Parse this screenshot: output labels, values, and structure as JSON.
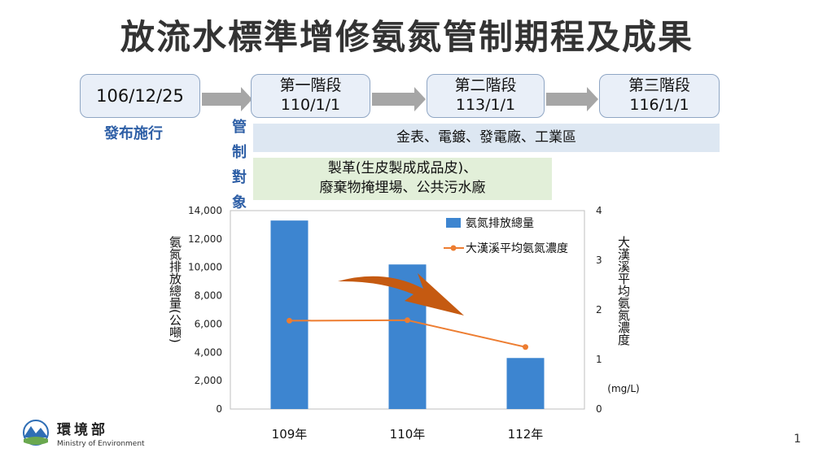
{
  "title": "放流水標準增修氨氮管制期程及成果",
  "timeline": {
    "start": {
      "date": "106/12/25",
      "caption": "發布施行"
    },
    "phases": [
      {
        "name": "第一階段",
        "date": "110/1/1"
      },
      {
        "name": "第二階段",
        "date": "113/1/1"
      },
      {
        "name": "第三階段",
        "date": "116/1/1"
      }
    ]
  },
  "management": {
    "label_chars": [
      "管",
      "制",
      "對",
      "象"
    ],
    "blue_band": "金表、電鍍、發電廠、工業區",
    "green_band_lines": [
      "製革(生皮製成成品皮)、",
      "廢棄物掩埋場、公共污水廠"
    ]
  },
  "colors": {
    "bar": "#3d85d0",
    "line": "#ed7d31",
    "trend_arrow": "#c55a11",
    "band_blue": "#dde7f2",
    "band_green": "#e2efd9"
  },
  "chart_data": {
    "type": "bar",
    "categories": [
      "109年",
      "110年",
      "112年"
    ],
    "series": [
      {
        "name": "氨氮排放總量",
        "type": "bar",
        "axis": "left",
        "values": [
          13300,
          10200,
          3600
        ]
      },
      {
        "name": "大漢溪平均氨氮濃度",
        "type": "line",
        "axis": "right",
        "values": [
          1.78,
          1.79,
          1.25
        ]
      }
    ],
    "ylabel": "氨氮排放總量(公噸)",
    "ylabel_right": "大漢溪平均氨氮濃度",
    "ylabel_right_unit": "(mg/L)",
    "ylim": [
      0,
      14000
    ],
    "ylim_right": [
      0,
      4
    ],
    "yticks": [
      "0",
      "2,000",
      "4,000",
      "6,000",
      "8,000",
      "10,000",
      "12,000",
      "14,000"
    ],
    "yticks_right": [
      "0",
      "1",
      "2",
      "3",
      "4"
    ],
    "legend": "top-right",
    "grid": false,
    "annotation": "downward trend arrow"
  },
  "logo": {
    "name_cn": "環境部",
    "name_en": "Ministry of Environment"
  },
  "page_number": "1"
}
